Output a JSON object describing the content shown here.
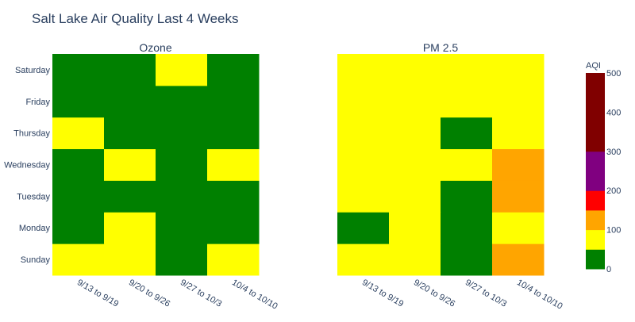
{
  "title": "Salt Lake Air Quality Last 4 Weeks",
  "colors": {
    "green": "#008000",
    "yellow": "#ffff00",
    "orange": "#ffa500",
    "red": "#ff0000",
    "purple": "#800080",
    "maroon": "#800000",
    "text": "#2a3f5f"
  },
  "chart_data": [
    {
      "type": "heatmap",
      "title": "Ozone",
      "x": [
        "9/13 to 9/19",
        "9/20 to 9/26",
        "9/27 to 10/3",
        "10/4 to 10/10"
      ],
      "y": [
        "Sunday",
        "Monday",
        "Tuesday",
        "Wednesday",
        "Thursday",
        "Friday",
        "Saturday"
      ],
      "z": [
        [
          50,
          50,
          25,
          50
        ],
        [
          25,
          50,
          25,
          25
        ],
        [
          25,
          25,
          25,
          25
        ],
        [
          25,
          50,
          25,
          50
        ],
        [
          50,
          25,
          25,
          25
        ],
        [
          25,
          25,
          25,
          25
        ],
        [
          25,
          25,
          50,
          25
        ]
      ]
    },
    {
      "type": "heatmap",
      "title": "PM 2.5",
      "x": [
        "9/13 to 9/19",
        "9/20 to 9/26",
        "9/27 to 10/3",
        "10/4 to 10/10"
      ],
      "y": [
        "Sunday",
        "Monday",
        "Tuesday",
        "Wednesday",
        "Thursday",
        "Friday",
        "Saturday"
      ],
      "z": [
        [
          50,
          50,
          25,
          120
        ],
        [
          25,
          50,
          25,
          50
        ],
        [
          50,
          50,
          25,
          120
        ],
        [
          50,
          50,
          50,
          120
        ],
        [
          50,
          50,
          25,
          50
        ],
        [
          50,
          50,
          50,
          50
        ],
        [
          50,
          50,
          50,
          50
        ]
      ]
    }
  ],
  "colorbar": {
    "title": "AQI",
    "range": [
      0,
      500
    ],
    "ticks": [
      0,
      100,
      200,
      300,
      400,
      500
    ],
    "bands": [
      {
        "from": 0,
        "to": 50,
        "color": "#008000"
      },
      {
        "from": 50,
        "to": 100,
        "color": "#ffff00"
      },
      {
        "from": 100,
        "to": 150,
        "color": "#ffa500"
      },
      {
        "from": 150,
        "to": 200,
        "color": "#ff0000"
      },
      {
        "from": 200,
        "to": 300,
        "color": "#800080"
      },
      {
        "from": 300,
        "to": 500,
        "color": "#800000"
      }
    ]
  }
}
